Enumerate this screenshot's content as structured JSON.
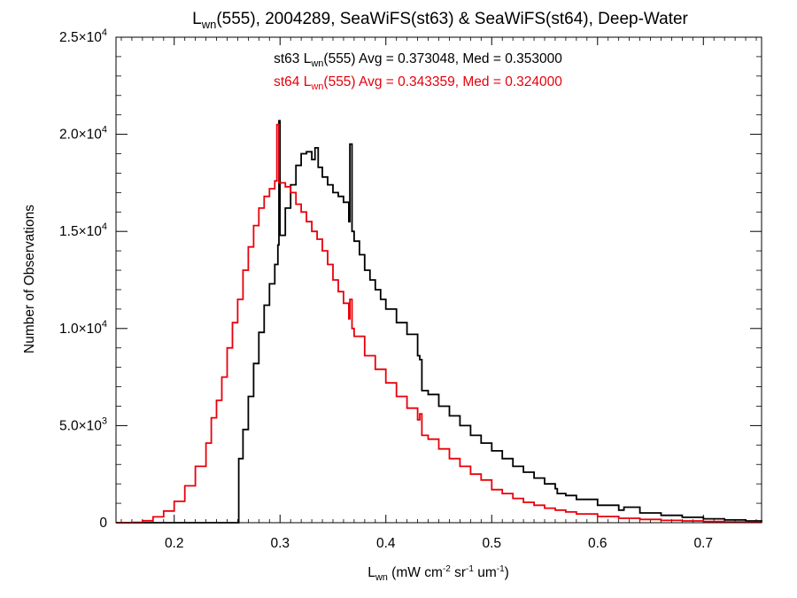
{
  "chart_data": {
    "type": "line",
    "title": {
      "prefix": "L",
      "sub": "wn",
      "suffix": "(555), 2004289, SeaWiFS(st63) & SeaWiFS(st64), Deep-Water"
    },
    "xlabel": {
      "main": "L",
      "sub": "wn",
      "rest": " (mW cm",
      "s1": "-2",
      "rest2": " sr",
      "s2": "-1",
      "rest3": " um",
      "s3": "-1",
      "end": ")"
    },
    "ylabel": "Number of Observations",
    "xlim": [
      0.145,
      0.755
    ],
    "ylim": [
      0,
      25000
    ],
    "x_ticks": [
      0.2,
      0.3,
      0.4,
      0.5,
      0.6,
      0.7
    ],
    "x_tick_labels": [
      "0.2",
      "0.3",
      "0.4",
      "0.5",
      "0.6",
      "0.7"
    ],
    "y_ticks": [
      0,
      5000,
      10000,
      15000,
      20000,
      25000
    ],
    "y_tick_labels": [
      {
        "m": "0",
        "e": ""
      },
      {
        "m": "5.0×10",
        "e": "3"
      },
      {
        "m": "1.0×10",
        "e": "4"
      },
      {
        "m": "1.5×10",
        "e": "4"
      },
      {
        "m": "2.0×10",
        "e": "4"
      },
      {
        "m": "2.5×10",
        "e": "4"
      }
    ],
    "annotations": [
      {
        "pre": "st63 L",
        "sub": "wn",
        "post": "(555) Avg = 0.373048, Med = 0.353000",
        "color": "#000000"
      },
      {
        "pre": "st64 L",
        "sub": "wn",
        "post": "(555) Avg = 0.343359, Med = 0.324000",
        "color": "#e8000b"
      }
    ],
    "series": [
      {
        "name": "st63",
        "color": "#000000",
        "points": [
          [
            0.145,
            0
          ],
          [
            0.26,
            0
          ],
          [
            0.261,
            3300
          ],
          [
            0.265,
            4800
          ],
          [
            0.27,
            6500
          ],
          [
            0.275,
            8200
          ],
          [
            0.28,
            9800
          ],
          [
            0.285,
            11200
          ],
          [
            0.29,
            12300
          ],
          [
            0.295,
            13300
          ],
          [
            0.298,
            14300
          ],
          [
            0.299,
            20700
          ],
          [
            0.3,
            14800
          ],
          [
            0.305,
            16200
          ],
          [
            0.31,
            17400
          ],
          [
            0.315,
            18400
          ],
          [
            0.32,
            19000
          ],
          [
            0.325,
            19100
          ],
          [
            0.33,
            18700
          ],
          [
            0.333,
            19300
          ],
          [
            0.336,
            18300
          ],
          [
            0.34,
            17800
          ],
          [
            0.345,
            17400
          ],
          [
            0.35,
            17000
          ],
          [
            0.355,
            16800
          ],
          [
            0.36,
            16500
          ],
          [
            0.365,
            15500
          ],
          [
            0.366,
            19500
          ],
          [
            0.368,
            15000
          ],
          [
            0.37,
            14500
          ],
          [
            0.375,
            13800
          ],
          [
            0.38,
            13000
          ],
          [
            0.385,
            12500
          ],
          [
            0.39,
            12000
          ],
          [
            0.395,
            11500
          ],
          [
            0.4,
            11000
          ],
          [
            0.41,
            10300
          ],
          [
            0.42,
            9700
          ],
          [
            0.43,
            8600
          ],
          [
            0.432,
            8400
          ],
          [
            0.434,
            6800
          ],
          [
            0.44,
            6600
          ],
          [
            0.45,
            6000
          ],
          [
            0.46,
            5500
          ],
          [
            0.47,
            5000
          ],
          [
            0.48,
            4500
          ],
          [
            0.49,
            4100
          ],
          [
            0.5,
            3700
          ],
          [
            0.51,
            3300
          ],
          [
            0.52,
            2900
          ],
          [
            0.53,
            2600
          ],
          [
            0.54,
            2300
          ],
          [
            0.55,
            2000
          ],
          [
            0.56,
            1750
          ],
          [
            0.562,
            1500
          ],
          [
            0.57,
            1400
          ],
          [
            0.58,
            1200
          ],
          [
            0.6,
            900
          ],
          [
            0.62,
            650
          ],
          [
            0.625,
            800
          ],
          [
            0.64,
            500
          ],
          [
            0.66,
            380
          ],
          [
            0.68,
            280
          ],
          [
            0.7,
            200
          ],
          [
            0.72,
            140
          ],
          [
            0.74,
            90
          ],
          [
            0.755,
            60
          ]
        ]
      },
      {
        "name": "st64",
        "color": "#e8000b",
        "points": [
          [
            0.145,
            0
          ],
          [
            0.16,
            20
          ],
          [
            0.17,
            100
          ],
          [
            0.18,
            300
          ],
          [
            0.19,
            600
          ],
          [
            0.2,
            1100
          ],
          [
            0.21,
            1900
          ],
          [
            0.22,
            2900
          ],
          [
            0.23,
            4100
          ],
          [
            0.235,
            5400
          ],
          [
            0.24,
            6300
          ],
          [
            0.245,
            7500
          ],
          [
            0.25,
            9000
          ],
          [
            0.255,
            10300
          ],
          [
            0.26,
            11500
          ],
          [
            0.265,
            13000
          ],
          [
            0.27,
            14200
          ],
          [
            0.275,
            15300
          ],
          [
            0.28,
            16200
          ],
          [
            0.285,
            16800
          ],
          [
            0.29,
            17200
          ],
          [
            0.295,
            17600
          ],
          [
            0.297,
            20500
          ],
          [
            0.299,
            17500
          ],
          [
            0.305,
            17300
          ],
          [
            0.31,
            17000
          ],
          [
            0.315,
            16400
          ],
          [
            0.32,
            16000
          ],
          [
            0.325,
            15500
          ],
          [
            0.33,
            15000
          ],
          [
            0.335,
            14600
          ],
          [
            0.34,
            14000
          ],
          [
            0.345,
            13300
          ],
          [
            0.35,
            12500
          ],
          [
            0.355,
            11900
          ],
          [
            0.36,
            11300
          ],
          [
            0.365,
            10500
          ],
          [
            0.366,
            11500
          ],
          [
            0.368,
            10000
          ],
          [
            0.37,
            9600
          ],
          [
            0.38,
            8600
          ],
          [
            0.39,
            7900
          ],
          [
            0.4,
            7200
          ],
          [
            0.41,
            6500
          ],
          [
            0.42,
            5900
          ],
          [
            0.43,
            5300
          ],
          [
            0.432,
            5600
          ],
          [
            0.434,
            4500
          ],
          [
            0.44,
            4300
          ],
          [
            0.45,
            3800
          ],
          [
            0.46,
            3300
          ],
          [
            0.47,
            2900
          ],
          [
            0.48,
            2500
          ],
          [
            0.49,
            2200
          ],
          [
            0.495,
            2200
          ],
          [
            0.5,
            1700
          ],
          [
            0.51,
            1500
          ],
          [
            0.52,
            1250
          ],
          [
            0.53,
            1050
          ],
          [
            0.54,
            900
          ],
          [
            0.55,
            750
          ],
          [
            0.56,
            650
          ],
          [
            0.57,
            550
          ],
          [
            0.58,
            450
          ],
          [
            0.6,
            320
          ],
          [
            0.62,
            230
          ],
          [
            0.64,
            170
          ],
          [
            0.66,
            120
          ],
          [
            0.68,
            90
          ],
          [
            0.7,
            60
          ],
          [
            0.72,
            40
          ],
          [
            0.74,
            25
          ],
          [
            0.755,
            15
          ]
        ]
      }
    ]
  }
}
